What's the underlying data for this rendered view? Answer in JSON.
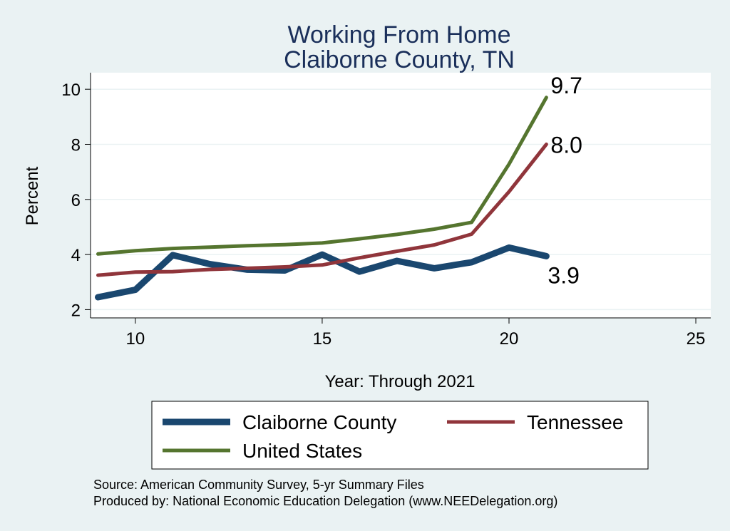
{
  "colors": {
    "background": "#eaf2f3",
    "plot_background": "#ffffff",
    "gridline": "#eaf2f3",
    "title": "#1a2f5a",
    "claiborne": "#1a476f",
    "tennessee": "#90353b",
    "united_states": "#55752f"
  },
  "chart_data": {
    "type": "line",
    "title": "Working From Home",
    "subtitle": "Claiborne County, TN",
    "xlabel": "Year: Through 2021",
    "ylabel": "Percent",
    "xlim": [
      8.8,
      25.4
    ],
    "ylim": [
      1.7,
      10.6
    ],
    "xticks": [
      "10",
      "15",
      "20",
      "25"
    ],
    "yticks": [
      "2",
      "4",
      "6",
      "8",
      "10"
    ],
    "grid": true,
    "legend_position": "bottom",
    "series": [
      {
        "name": "Claiborne County",
        "color_key": "claiborne",
        "x": [
          9,
          10,
          11,
          12,
          13,
          14,
          15,
          16,
          17,
          18,
          19,
          20,
          21
        ],
        "y": [
          2.45,
          2.72,
          3.98,
          3.65,
          3.45,
          3.42,
          4.0,
          3.38,
          3.77,
          3.5,
          3.72,
          4.25,
          3.94
        ],
        "end_label": "3.9"
      },
      {
        "name": "Tennessee",
        "color_key": "tennessee",
        "x": [
          9,
          10,
          11,
          12,
          13,
          14,
          15,
          16,
          17,
          18,
          19,
          20,
          21
        ],
        "y": [
          3.25,
          3.36,
          3.38,
          3.46,
          3.5,
          3.55,
          3.62,
          3.88,
          4.12,
          4.35,
          4.74,
          6.28,
          8.0
        ],
        "end_label": "8.0"
      },
      {
        "name": "United States",
        "color_key": "united_states",
        "x": [
          9,
          10,
          11,
          12,
          13,
          14,
          15,
          16,
          17,
          18,
          19,
          20,
          21
        ],
        "y": [
          4.02,
          4.14,
          4.22,
          4.27,
          4.32,
          4.36,
          4.42,
          4.57,
          4.73,
          4.92,
          5.17,
          7.28,
          9.7
        ],
        "end_label": "9.7"
      }
    ]
  },
  "legend": {
    "items": [
      "Claiborne County",
      "Tennessee",
      "United States"
    ]
  },
  "source": {
    "line1": "Source: American Community Survey, 5-yr Summary Files",
    "line2": "Produced by: National Economic Education Delegation (www.NEEDelegation.org)"
  }
}
